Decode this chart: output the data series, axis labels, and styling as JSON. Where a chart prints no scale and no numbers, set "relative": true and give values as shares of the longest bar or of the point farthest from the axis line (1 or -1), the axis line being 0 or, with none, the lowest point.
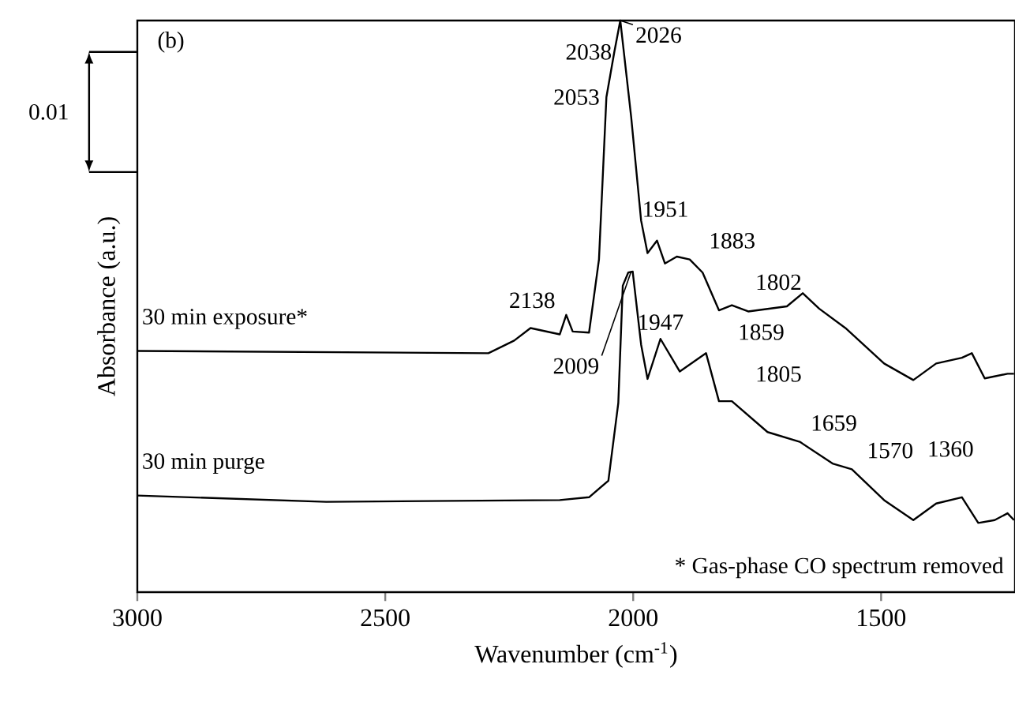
{
  "chart_data": {
    "type": "line",
    "relative": true,
    "xlabel": "Wavenumber (cm$^{-1}$)",
    "ylabel": "Absorbance (a.u.)",
    "xlim": [
      3000,
      1230
    ],
    "xticks": [
      3000,
      2500,
      2000,
      1500
    ],
    "legend": false,
    "grid": false,
    "marker": "none",
    "line_style": "solid",
    "series": [
      {
        "name": "30 min exposure*",
        "color": "#000000",
        "x": [
          3000,
          2292,
          2240,
          2207,
          2148,
          2135,
          2122,
          2089,
          2069,
          2054,
          2038,
          2026,
          2004,
          1984,
          1971,
          1952,
          1936,
          1912,
          1886,
          1860,
          1827,
          1801,
          1768,
          1690,
          1658,
          1625,
          1572,
          1494,
          1435,
          1389,
          1337,
          1317,
          1291,
          1245,
          1232
        ],
        "values": [
          0.422,
          0.418,
          0.44,
          0.462,
          0.451,
          0.485,
          0.456,
          0.454,
          0.582,
          0.866,
          0.945,
          1.0,
          0.831,
          0.65,
          0.593,
          0.615,
          0.575,
          0.587,
          0.582,
          0.559,
          0.493,
          0.502,
          0.491,
          0.5,
          0.523,
          0.496,
          0.462,
          0.4,
          0.371,
          0.4,
          0.41,
          0.418,
          0.374,
          0.382,
          0.382
        ]
      },
      {
        "name": "30 min purge",
        "color": "#000000",
        "x": [
          3000,
          2619,
          2148,
          2089,
          2050,
          2030,
          2021,
          2010,
          2001,
          1984,
          1971,
          1945,
          1906,
          1853,
          1827,
          1801,
          1729,
          1664,
          1598,
          1559,
          1494,
          1435,
          1389,
          1337,
          1304,
          1271,
          1245,
          1232
        ],
        "values": [
          0.169,
          0.158,
          0.161,
          0.166,
          0.195,
          0.331,
          0.536,
          0.559,
          0.561,
          0.433,
          0.373,
          0.443,
          0.386,
          0.418,
          0.334,
          0.334,
          0.28,
          0.263,
          0.225,
          0.215,
          0.161,
          0.126,
          0.155,
          0.166,
          0.121,
          0.126,
          0.138,
          0.126
        ]
      }
    ],
    "annotations": [
      {
        "text": "2038",
        "x": 2038,
        "y": 0.945
      },
      {
        "text": "2026",
        "x": 2026,
        "y": 1.0
      },
      {
        "text": "2053",
        "x": 2054,
        "y": 0.866
      },
      {
        "text": "2138",
        "x": 2135,
        "y": 0.485
      },
      {
        "text": "1951",
        "x": 1952,
        "y": 0.615
      },
      {
        "text": "1883",
        "x": 1886,
        "y": 0.582
      },
      {
        "text": "1802",
        "x": 1801,
        "y": 0.502
      },
      {
        "text": "2009",
        "x": 2004,
        "y": 0.561
      },
      {
        "text": "1947",
        "x": 1945,
        "y": 0.443
      },
      {
        "text": "1859",
        "x": 1853,
        "y": 0.418
      },
      {
        "text": "1805",
        "x": 1801,
        "y": 0.334
      },
      {
        "text": "1659",
        "x": 1664,
        "y": 0.263
      },
      {
        "text": "1570",
        "x": 1559,
        "y": 0.215
      },
      {
        "text": "1360",
        "x": 1360,
        "y": 0.166
      },
      "(b)",
      "0.01",
      "* Gas-phase CO spectrum removed"
    ]
  }
}
